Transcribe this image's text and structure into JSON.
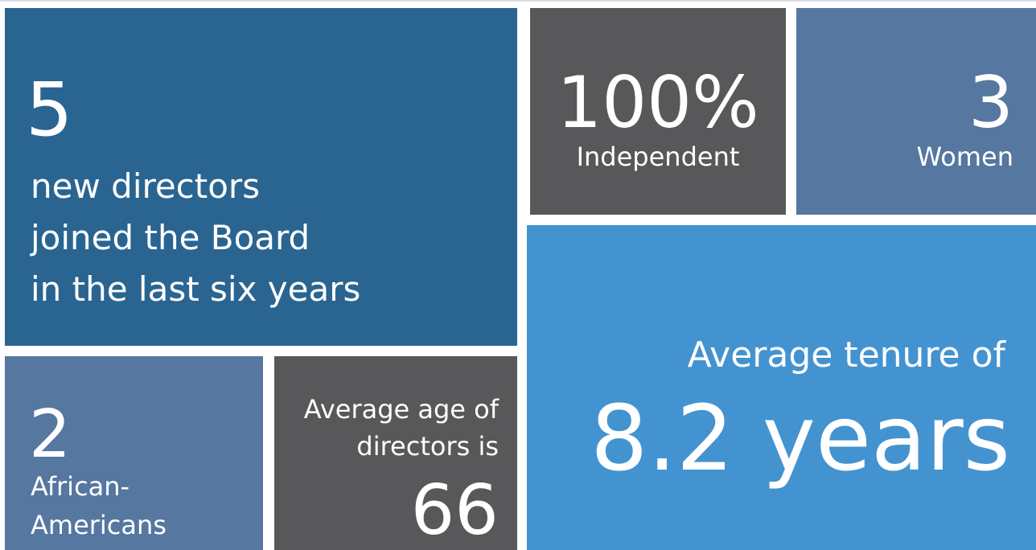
{
  "tiles": [
    {
      "figure": "5",
      "lines": [
        "new directors",
        "joined the Board",
        "in the last six years"
      ]
    },
    {
      "figure": "100%",
      "lines": [
        "Independent"
      ]
    },
    {
      "figure": "3",
      "lines": [
        "Women"
      ]
    },
    {
      "lines": [
        "Average tenure of"
      ],
      "figure": "8.2 years"
    },
    {
      "figure": "2",
      "lines": [
        "African-",
        "Americans"
      ]
    },
    {
      "lines": [
        "Average age of",
        "directors is"
      ],
      "figure": "66"
    }
  ]
}
